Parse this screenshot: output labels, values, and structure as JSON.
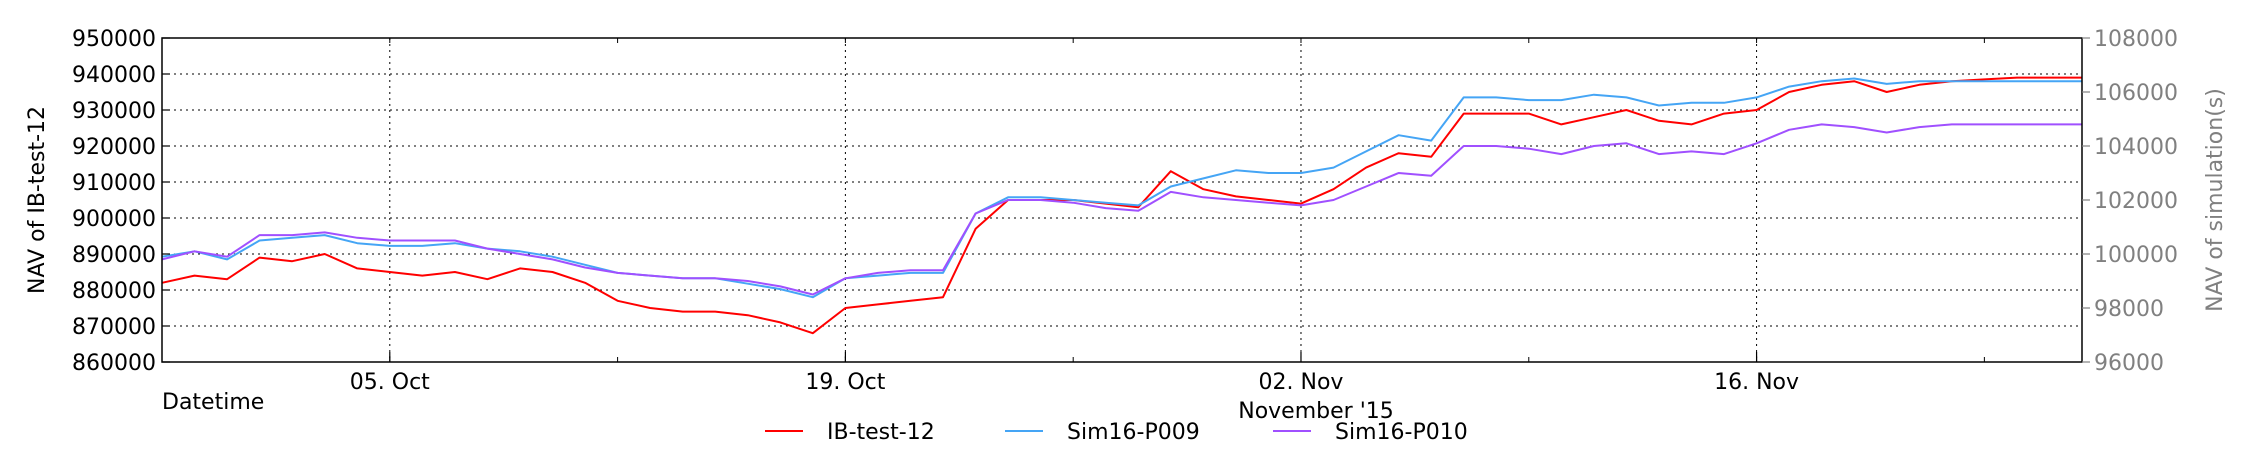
{
  "chart_data": {
    "type": "line",
    "title": "",
    "xlabel": "Datetime",
    "x_sublabel": "November '15",
    "ylabel_left": "NAV of IB-test-12",
    "ylabel_right": "NAV of simulation(s)",
    "ylim_left": [
      860000,
      950000
    ],
    "ylim_right": [
      96000,
      108000
    ],
    "y_ticks_left": [
      "860000",
      "870000",
      "880000",
      "890000",
      "900000",
      "910000",
      "920000",
      "930000",
      "940000",
      "950000"
    ],
    "y_ticks_right": [
      "96000",
      "98000",
      "100000",
      "102000",
      "104000",
      "106000",
      "108000"
    ],
    "x_range": [
      "2015-09-28",
      "2015-11-26"
    ],
    "x_ticks": [
      {
        "date": "2015-10-05",
        "label": "05. Oct"
      },
      {
        "date": "2015-10-19",
        "label": "19. Oct"
      },
      {
        "date": "2015-11-02",
        "label": "02. Nov"
      },
      {
        "date": "2015-11-16",
        "label": "16. Nov"
      }
    ],
    "grid": true,
    "legend_position": "bottom-center",
    "series": [
      {
        "name": "IB-test-12",
        "color": "#ff0000",
        "axis": "left",
        "points": [
          [
            "2015-09-28",
            882000
          ],
          [
            "2015-09-29",
            884000
          ],
          [
            "2015-09-30",
            883000
          ],
          [
            "2015-10-01",
            889000
          ],
          [
            "2015-10-02",
            888000
          ],
          [
            "2015-10-03",
            890000
          ],
          [
            "2015-10-04",
            886000
          ],
          [
            "2015-10-05",
            885000
          ],
          [
            "2015-10-06",
            884000
          ],
          [
            "2015-10-07",
            885000
          ],
          [
            "2015-10-08",
            883000
          ],
          [
            "2015-10-09",
            886000
          ],
          [
            "2015-10-10",
            885000
          ],
          [
            "2015-10-11",
            882000
          ],
          [
            "2015-10-12",
            877000
          ],
          [
            "2015-10-13",
            875000
          ],
          [
            "2015-10-14",
            874000
          ],
          [
            "2015-10-15",
            874000
          ],
          [
            "2015-10-16",
            873000
          ],
          [
            "2015-10-17",
            871000
          ],
          [
            "2015-10-18",
            868000
          ],
          [
            "2015-10-19",
            875000
          ],
          [
            "2015-10-20",
            876000
          ],
          [
            "2015-10-21",
            877000
          ],
          [
            "2015-10-22",
            878000
          ],
          [
            "2015-10-23",
            897000
          ],
          [
            "2015-10-24",
            905000
          ],
          [
            "2015-10-25",
            905000
          ],
          [
            "2015-10-26",
            905000
          ],
          [
            "2015-10-27",
            904000
          ],
          [
            "2015-10-28",
            903000
          ],
          [
            "2015-10-29",
            913000
          ],
          [
            "2015-10-30",
            908000
          ],
          [
            "2015-10-31",
            906000
          ],
          [
            "2015-11-01",
            905000
          ],
          [
            "2015-11-02",
            904000
          ],
          [
            "2015-11-03",
            908000
          ],
          [
            "2015-11-04",
            914000
          ],
          [
            "2015-11-05",
            918000
          ],
          [
            "2015-11-06",
            917000
          ],
          [
            "2015-11-07",
            929000
          ],
          [
            "2015-11-08",
            929000
          ],
          [
            "2015-11-09",
            929000
          ],
          [
            "2015-11-10",
            926000
          ],
          [
            "2015-11-11",
            928000
          ],
          [
            "2015-11-12",
            930000
          ],
          [
            "2015-11-13",
            927000
          ],
          [
            "2015-11-14",
            926000
          ],
          [
            "2015-11-15",
            929000
          ],
          [
            "2015-11-16",
            930000
          ],
          [
            "2015-11-17",
            935000
          ],
          [
            "2015-11-18",
            937000
          ],
          [
            "2015-11-19",
            938000
          ],
          [
            "2015-11-20",
            935000
          ],
          [
            "2015-11-21",
            937000
          ],
          [
            "2015-11-22",
            938000
          ],
          [
            "2015-11-23",
            938500
          ],
          [
            "2015-11-24",
            939000
          ],
          [
            "2015-11-25",
            939000
          ],
          [
            "2015-11-26",
            939000
          ]
        ]
      },
      {
        "name": "Sim16-P009",
        "color": "#45a5f5",
        "axis": "right",
        "points": [
          [
            "2015-09-28",
            99900
          ],
          [
            "2015-09-29",
            100100
          ],
          [
            "2015-09-30",
            99800
          ],
          [
            "2015-10-01",
            100500
          ],
          [
            "2015-10-02",
            100600
          ],
          [
            "2015-10-03",
            100700
          ],
          [
            "2015-10-04",
            100400
          ],
          [
            "2015-10-05",
            100300
          ],
          [
            "2015-10-06",
            100300
          ],
          [
            "2015-10-07",
            100400
          ],
          [
            "2015-10-08",
            100200
          ],
          [
            "2015-10-09",
            100100
          ],
          [
            "2015-10-10",
            99900
          ],
          [
            "2015-10-11",
            99600
          ],
          [
            "2015-10-12",
            99300
          ],
          [
            "2015-10-13",
            99200
          ],
          [
            "2015-10-14",
            99100
          ],
          [
            "2015-10-15",
            99100
          ],
          [
            "2015-10-16",
            98900
          ],
          [
            "2015-10-17",
            98700
          ],
          [
            "2015-10-18",
            98400
          ],
          [
            "2015-10-19",
            99100
          ],
          [
            "2015-10-20",
            99200
          ],
          [
            "2015-10-21",
            99300
          ],
          [
            "2015-10-22",
            99300
          ],
          [
            "2015-10-23",
            101500
          ],
          [
            "2015-10-24",
            102100
          ],
          [
            "2015-10-25",
            102100
          ],
          [
            "2015-10-26",
            102000
          ],
          [
            "2015-10-27",
            101900
          ],
          [
            "2015-10-28",
            101800
          ],
          [
            "2015-10-29",
            102500
          ],
          [
            "2015-10-30",
            102800
          ],
          [
            "2015-10-31",
            103100
          ],
          [
            "2015-11-01",
            103000
          ],
          [
            "2015-11-02",
            103000
          ],
          [
            "2015-11-03",
            103200
          ],
          [
            "2015-11-04",
            103800
          ],
          [
            "2015-11-05",
            104400
          ],
          [
            "2015-11-06",
            104200
          ],
          [
            "2015-11-07",
            105800
          ],
          [
            "2015-11-08",
            105800
          ],
          [
            "2015-11-09",
            105700
          ],
          [
            "2015-11-10",
            105700
          ],
          [
            "2015-11-11",
            105900
          ],
          [
            "2015-11-12",
            105800
          ],
          [
            "2015-11-13",
            105500
          ],
          [
            "2015-11-14",
            105600
          ],
          [
            "2015-11-15",
            105600
          ],
          [
            "2015-11-16",
            105800
          ],
          [
            "2015-11-17",
            106200
          ],
          [
            "2015-11-18",
            106400
          ],
          [
            "2015-11-19",
            106500
          ],
          [
            "2015-11-20",
            106300
          ],
          [
            "2015-11-21",
            106400
          ],
          [
            "2015-11-22",
            106400
          ],
          [
            "2015-11-23",
            106400
          ],
          [
            "2015-11-24",
            106400
          ],
          [
            "2015-11-25",
            106400
          ],
          [
            "2015-11-26",
            106400
          ]
        ]
      },
      {
        "name": "Sim16-P010",
        "color": "#a050ff",
        "axis": "right",
        "points": [
          [
            "2015-09-28",
            99800
          ],
          [
            "2015-09-29",
            100100
          ],
          [
            "2015-09-30",
            99900
          ],
          [
            "2015-10-01",
            100700
          ],
          [
            "2015-10-02",
            100700
          ],
          [
            "2015-10-03",
            100800
          ],
          [
            "2015-10-04",
            100600
          ],
          [
            "2015-10-05",
            100500
          ],
          [
            "2015-10-06",
            100500
          ],
          [
            "2015-10-07",
            100500
          ],
          [
            "2015-10-08",
            100200
          ],
          [
            "2015-10-09",
            100000
          ],
          [
            "2015-10-10",
            99800
          ],
          [
            "2015-10-11",
            99500
          ],
          [
            "2015-10-12",
            99300
          ],
          [
            "2015-10-13",
            99200
          ],
          [
            "2015-10-14",
            99100
          ],
          [
            "2015-10-15",
            99100
          ],
          [
            "2015-10-16",
            99000
          ],
          [
            "2015-10-17",
            98800
          ],
          [
            "2015-10-18",
            98500
          ],
          [
            "2015-10-19",
            99100
          ],
          [
            "2015-10-20",
            99300
          ],
          [
            "2015-10-21",
            99400
          ],
          [
            "2015-10-22",
            99400
          ],
          [
            "2015-10-23",
            101500
          ],
          [
            "2015-10-24",
            102000
          ],
          [
            "2015-10-25",
            102000
          ],
          [
            "2015-10-26",
            101900
          ],
          [
            "2015-10-27",
            101700
          ],
          [
            "2015-10-28",
            101600
          ],
          [
            "2015-10-29",
            102300
          ],
          [
            "2015-10-30",
            102100
          ],
          [
            "2015-10-31",
            102000
          ],
          [
            "2015-11-01",
            101900
          ],
          [
            "2015-11-02",
            101800
          ],
          [
            "2015-11-03",
            102000
          ],
          [
            "2015-11-04",
            102500
          ],
          [
            "2015-11-05",
            103000
          ],
          [
            "2015-11-06",
            102900
          ],
          [
            "2015-11-07",
            104000
          ],
          [
            "2015-11-08",
            104000
          ],
          [
            "2015-11-09",
            103900
          ],
          [
            "2015-11-10",
            103700
          ],
          [
            "2015-11-11",
            104000
          ],
          [
            "2015-11-12",
            104100
          ],
          [
            "2015-11-13",
            103700
          ],
          [
            "2015-11-14",
            103800
          ],
          [
            "2015-11-15",
            103700
          ],
          [
            "2015-11-16",
            104100
          ],
          [
            "2015-11-17",
            104600
          ],
          [
            "2015-11-18",
            104800
          ],
          [
            "2015-11-19",
            104700
          ],
          [
            "2015-11-20",
            104500
          ],
          [
            "2015-11-21",
            104700
          ],
          [
            "2015-11-22",
            104800
          ],
          [
            "2015-11-23",
            104800
          ],
          [
            "2015-11-24",
            104800
          ],
          [
            "2015-11-25",
            104800
          ],
          [
            "2015-11-26",
            104800
          ]
        ]
      }
    ]
  }
}
